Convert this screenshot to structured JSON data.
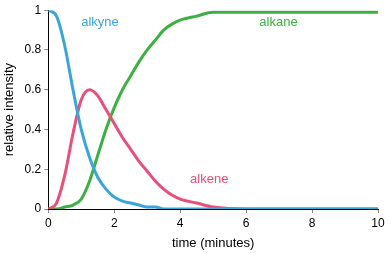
{
  "chart_data": {
    "type": "line",
    "x_label": "time (minutes)",
    "y_label": "relative intensity",
    "x": [
      0,
      0.25,
      0.5,
      0.75,
      1,
      1.25,
      1.5,
      1.75,
      2,
      2.25,
      2.5,
      2.75,
      3,
      3.25,
      3.5,
      3.75,
      4,
      4.5,
      5,
      6,
      7,
      8,
      9,
      10
    ],
    "series": [
      {
        "name": "alkyne",
        "color": "#3aa6d8",
        "values": [
          1,
          0.97,
          0.82,
          0.6,
          0.4,
          0.26,
          0.16,
          0.1,
          0.06,
          0.04,
          0.03,
          0.02,
          0.01,
          0.01,
          0,
          0,
          0,
          0,
          0,
          0,
          0,
          0,
          0,
          0
        ]
      },
      {
        "name": "alkene",
        "color": "#e6507a",
        "values": [
          0,
          0.03,
          0.17,
          0.38,
          0.55,
          0.6,
          0.57,
          0.5,
          0.43,
          0.36,
          0.3,
          0.24,
          0.19,
          0.14,
          0.1,
          0.07,
          0.05,
          0.03,
          0.01,
          0,
          0,
          0,
          0,
          0
        ]
      },
      {
        "name": "alkane",
        "color": "#3cb043",
        "values": [
          0,
          0,
          0.01,
          0.02,
          0.05,
          0.14,
          0.27,
          0.4,
          0.51,
          0.6,
          0.67,
          0.74,
          0.8,
          0.85,
          0.9,
          0.93,
          0.95,
          0.97,
          0.99,
          0.99,
          0.99,
          0.99,
          0.99,
          0.99
        ]
      }
    ],
    "xlim": [
      0,
      10
    ],
    "xticks": [
      0,
      2,
      4,
      6,
      8,
      10
    ],
    "ylim": [
      0,
      1
    ],
    "yticks": [
      0,
      0.2,
      0.4,
      0.6,
      0.8,
      1
    ],
    "grid": false,
    "marker": "none",
    "line_style": "solid"
  }
}
